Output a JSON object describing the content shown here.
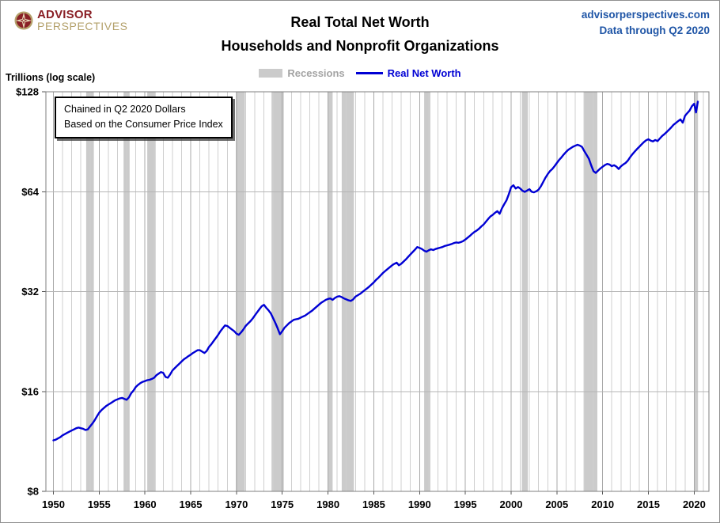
{
  "header": {
    "logo_line1": "ADVISOR",
    "logo_line2": "PERSPECTIVES",
    "title_line1": "Real Total Net Worth",
    "title_line2": "Households and Nonprofit Organizations",
    "site": "advisorperspectives.com",
    "data_through": "Data through Q2 2020"
  },
  "legend": {
    "recessions_label": "Recessions",
    "series_label": "Real Net Worth"
  },
  "axis_note": "Trillions (log scale)",
  "annotation": {
    "line1": "Chained in Q2 2020 Dollars",
    "line2": "Based on the Consumer Price Index"
  },
  "colors": {
    "line": "#0000d4",
    "recession": "#cbcbcb",
    "recession_text": "#a3a3a3",
    "site_text": "#1f55a6",
    "logo_maroon": "#8a2026",
    "logo_gold": "#b3a06a",
    "grid_minor": "#cfcfcf",
    "grid_major": "#a8a8a8",
    "grid_horizontal": "#b5b5b5",
    "plot_border": "#7f7f7f",
    "tick_text": "#000000"
  },
  "chart_data": {
    "type": "line",
    "title": "Real Total Net Worth — Households and Nonprofit Organizations",
    "ylabel": "Trillions (log scale)",
    "log_scale": true,
    "y_range": [
      8,
      128
    ],
    "y_ticks": [
      {
        "label": "$128",
        "value": 128
      },
      {
        "label": "$64",
        "value": 64
      },
      {
        "label": "$32",
        "value": 32
      },
      {
        "label": "$16",
        "value": 16
      },
      {
        "label": "$8",
        "value": 8
      }
    ],
    "x_ticks": [
      1950,
      1955,
      1960,
      1965,
      1970,
      1975,
      1980,
      1985,
      1990,
      1995,
      2000,
      2005,
      2010,
      2015,
      2020
    ],
    "x_gridline_range": [
      1950,
      2021
    ],
    "recessions": [
      [
        1953.58,
        1954.42
      ],
      [
        1957.67,
        1958.33
      ],
      [
        1960.25,
        1961.17
      ],
      [
        1969.92,
        1970.92
      ],
      [
        1973.83,
        1975.17
      ],
      [
        1980.0,
        1980.5
      ],
      [
        1981.5,
        1982.83
      ],
      [
        1990.5,
        1991.17
      ],
      [
        2001.17,
        2001.83
      ],
      [
        2007.92,
        2009.42
      ],
      [
        2020.04,
        2020.42
      ]
    ],
    "series": [
      {
        "name": "Real Net Worth",
        "units": "trillions of Q2 2020 dollars",
        "x_start": 1950.0,
        "x_step": 0.25,
        "values": [
          11.4,
          11.45,
          11.55,
          11.65,
          11.8,
          11.9,
          12.0,
          12.1,
          12.2,
          12.3,
          12.4,
          12.45,
          12.4,
          12.35,
          12.25,
          12.3,
          12.55,
          12.8,
          13.1,
          13.45,
          13.8,
          14.05,
          14.25,
          14.45,
          14.6,
          14.75,
          14.9,
          15.05,
          15.15,
          15.25,
          15.3,
          15.2,
          15.1,
          15.35,
          15.8,
          16.1,
          16.5,
          16.75,
          16.95,
          17.1,
          17.2,
          17.3,
          17.35,
          17.45,
          17.6,
          17.9,
          18.1,
          18.3,
          18.2,
          17.7,
          17.6,
          18.0,
          18.5,
          18.8,
          19.1,
          19.4,
          19.7,
          20.0,
          20.2,
          20.45,
          20.65,
          20.9,
          21.1,
          21.3,
          21.3,
          21.1,
          20.9,
          21.2,
          21.8,
          22.2,
          22.7,
          23.2,
          23.7,
          24.3,
          24.8,
          25.3,
          25.2,
          24.9,
          24.6,
          24.3,
          23.9,
          23.7,
          24.1,
          24.6,
          25.2,
          25.6,
          26.0,
          26.5,
          27.1,
          27.7,
          28.3,
          28.9,
          29.2,
          28.6,
          28.1,
          27.5,
          26.6,
          25.7,
          24.8,
          23.8,
          24.3,
          24.9,
          25.3,
          25.7,
          26.0,
          26.3,
          26.4,
          26.5,
          26.7,
          26.9,
          27.1,
          27.4,
          27.7,
          28.0,
          28.4,
          28.8,
          29.2,
          29.6,
          29.9,
          30.2,
          30.4,
          30.5,
          30.2,
          30.6,
          30.9,
          31.0,
          30.8,
          30.5,
          30.3,
          30.1,
          30.0,
          30.3,
          30.9,
          31.2,
          31.5,
          31.9,
          32.3,
          32.7,
          33.1,
          33.6,
          34.1,
          34.7,
          35.2,
          35.8,
          36.4,
          36.9,
          37.4,
          37.9,
          38.4,
          38.8,
          39.1,
          38.4,
          38.8,
          39.4,
          40.0,
          40.7,
          41.4,
          42.1,
          42.8,
          43.6,
          43.3,
          43.0,
          42.5,
          42.2,
          42.6,
          42.9,
          42.7,
          43.0,
          43.2,
          43.4,
          43.6,
          43.9,
          44.1,
          44.3,
          44.5,
          44.8,
          45.0,
          44.9,
          45.1,
          45.4,
          45.9,
          46.5,
          47.1,
          47.8,
          48.4,
          48.9,
          49.5,
          50.3,
          51.0,
          52.0,
          53.0,
          53.9,
          54.5,
          55.3,
          55.9,
          54.9,
          57.0,
          58.7,
          60.3,
          62.9,
          66.0,
          66.9,
          65.4,
          66.1,
          65.4,
          64.4,
          63.9,
          64.5,
          65.1,
          64.0,
          63.7,
          64.2,
          64.9,
          66.4,
          68.4,
          70.5,
          72.3,
          73.8,
          74.9,
          76.4,
          78.1,
          79.8,
          81.2,
          82.8,
          84.3,
          85.6,
          86.5,
          87.4,
          88.0,
          88.6,
          88.1,
          87.3,
          84.8,
          82.6,
          80.4,
          76.8,
          73.8,
          72.9,
          74.1,
          75.2,
          76.1,
          77.0,
          77.6,
          77.3,
          76.4,
          76.9,
          76.2,
          74.9,
          76.3,
          77.3,
          78.1,
          79.4,
          81.3,
          83.0,
          84.5,
          86.0,
          87.4,
          88.8,
          90.2,
          91.4,
          92.1,
          91.2,
          90.7,
          91.6,
          90.9,
          92.6,
          94.2,
          95.4,
          96.9,
          98.4,
          100.0,
          101.8,
          103.1,
          104.4,
          105.7,
          103.3,
          108.3,
          110.4,
          112.4,
          115.8
        ],
        "tail_points": [
          [
            2020.0,
            117.8
          ],
          [
            2020.2,
            110.9
          ],
          [
            2020.4,
            119.5
          ]
        ]
      }
    ]
  }
}
